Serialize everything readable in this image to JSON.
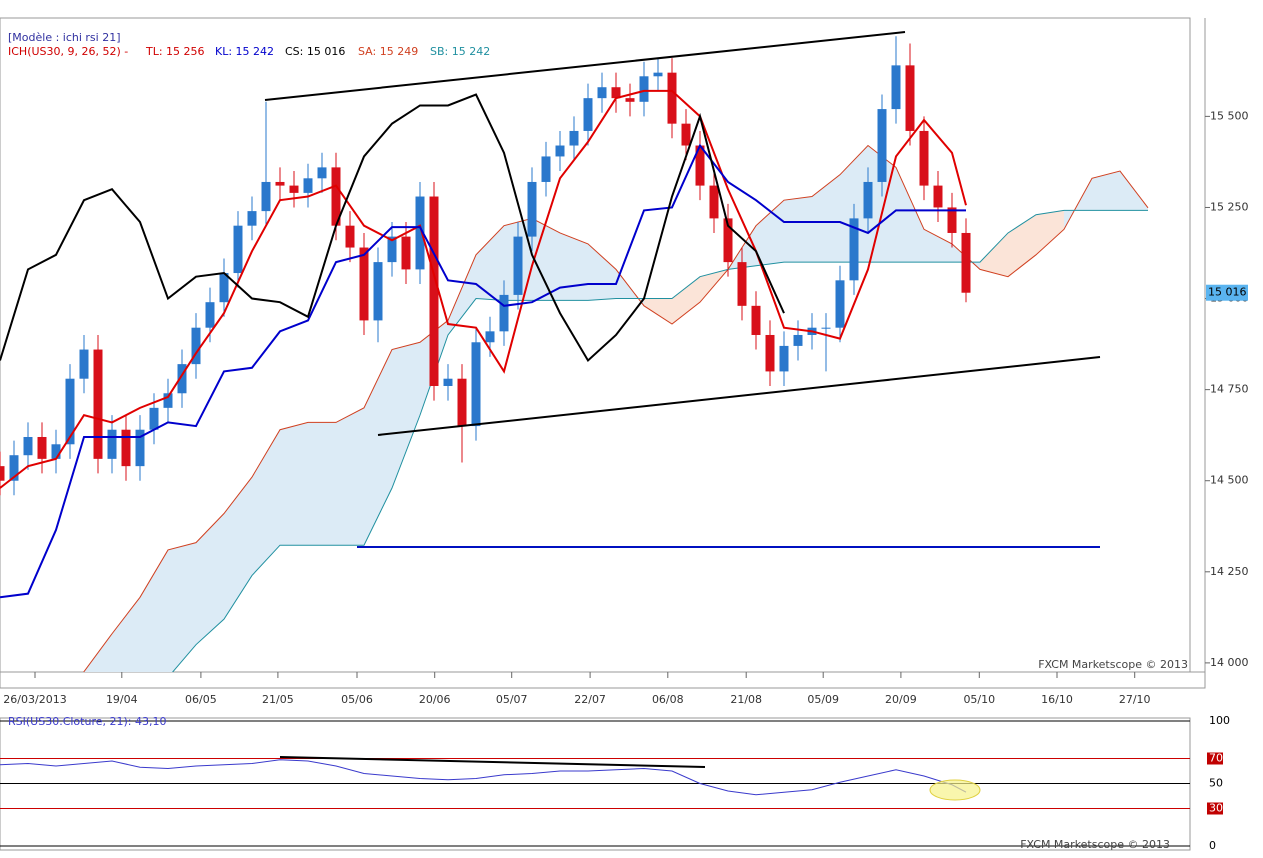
{
  "chart_data": {
    "type": "candlestick",
    "model_label": "[Modèle : ichi rsi 21]",
    "indicator_label": "ICH(US30, 9, 26, 52) -",
    "watermark": "FXCM Marketscope © 2013",
    "up_color": "#2a78cc",
    "down_color": "#d8101a",
    "xlim": [
      0,
      170
    ],
    "xticks": [
      {
        "value": 5,
        "label": "26/03/2013"
      },
      {
        "value": 17.4,
        "label": "19/04"
      },
      {
        "value": 28.7,
        "label": "06/05"
      },
      {
        "value": 39.7,
        "label": "21/05"
      },
      {
        "value": 51,
        "label": "05/06"
      },
      {
        "value": 62.1,
        "label": "20/06"
      },
      {
        "value": 73.1,
        "label": "05/07"
      },
      {
        "value": 84.3,
        "label": "22/07"
      },
      {
        "value": 95.4,
        "label": "06/08"
      },
      {
        "value": 106.6,
        "label": "21/08"
      },
      {
        "value": 117.6,
        "label": "05/09"
      },
      {
        "value": 128.7,
        "label": "20/09"
      },
      {
        "value": 139.9,
        "label": "05/10"
      },
      {
        "value": 151,
        "label": "16/10"
      },
      {
        "value": 162.1,
        "label": "27/10"
      }
    ],
    "ylim": [
      13975,
      15770
    ],
    "yticks": [
      {
        "value": 14000,
        "label": "14 000"
      },
      {
        "value": 14250,
        "label": "14 250"
      },
      {
        "value": 14500,
        "label": "14 500"
      },
      {
        "value": 14750,
        "label": "14 750"
      },
      {
        "value": 15000,
        "label": "15 000"
      },
      {
        "value": 15250,
        "label": "15 250"
      },
      {
        "value": 15500,
        "label": "15 500"
      }
    ],
    "last_price": {
      "value": 15016,
      "label": "15 016"
    },
    "x": [
      0,
      2,
      4,
      6,
      8,
      10,
      12,
      14,
      16,
      18,
      20,
      22,
      24,
      26,
      28,
      30,
      32,
      34,
      36,
      38,
      40,
      42,
      44,
      46,
      48,
      50,
      52,
      54,
      56,
      58,
      60,
      62,
      64,
      66,
      68,
      70,
      72,
      74,
      76,
      78,
      80,
      82,
      84,
      86,
      88,
      90,
      92,
      94,
      96,
      98,
      100,
      102,
      104,
      106,
      108,
      110,
      112,
      114,
      116,
      118,
      120,
      122,
      124,
      126,
      128,
      130,
      132,
      134,
      136,
      138
    ],
    "open": [
      14540,
      14500,
      14570,
      14620,
      14560,
      14600,
      14780,
      14860,
      14560,
      14640,
      14540,
      14640,
      14700,
      14740,
      14820,
      14920,
      14990,
      15070,
      15200,
      15240,
      15320,
      15310,
      15290,
      15330,
      15360,
      15200,
      15140,
      14940,
      15100,
      15170,
      15080,
      15280,
      14760,
      14780,
      14650,
      14880,
      14910,
      15010,
      15170,
      15320,
      15390,
      15420,
      15460,
      15550,
      15580,
      15550,
      15540,
      15610,
      15620,
      15480,
      15420,
      15310,
      15220,
      15100,
      14980,
      14900,
      14800,
      14870,
      14900,
      14920,
      14920,
      15050,
      15220,
      15320,
      15520,
      15640,
      15460,
      15310,
      15250,
      15180
    ],
    "high": [
      14580,
      14610,
      14660,
      14660,
      14640,
      14820,
      14900,
      14900,
      14680,
      14680,
      14680,
      14740,
      14780,
      14860,
      14960,
      15030,
      15110,
      15240,
      15280,
      15540,
      15360,
      15350,
      15370,
      15400,
      15400,
      15240,
      15180,
      15140,
      15210,
      15210,
      15320,
      15320,
      14820,
      14820,
      14920,
      14950,
      15050,
      15210,
      15360,
      15430,
      15460,
      15500,
      15590,
      15620,
      15620,
      15590,
      15650,
      15660,
      15660,
      15520,
      15460,
      15350,
      15260,
      15140,
      15020,
      14940,
      14910,
      14940,
      14960,
      14960,
      15090,
      15260,
      15360,
      15560,
      15720,
      15700,
      15500,
      15350,
      15290,
      15220
    ],
    "low": [
      14460,
      14460,
      14530,
      14520,
      14520,
      14560,
      14740,
      14520,
      14520,
      14500,
      14500,
      14600,
      14660,
      14700,
      14780,
      14880,
      14950,
      15030,
      15160,
      15200,
      15270,
      15250,
      15250,
      15290,
      15160,
      15100,
      14900,
      14880,
      15060,
      15040,
      15040,
      14720,
      14720,
      14550,
      14610,
      14840,
      14870,
      14970,
      15130,
      15280,
      15350,
      15380,
      15420,
      15510,
      15510,
      15500,
      15500,
      15570,
      15440,
      15380,
      15270,
      15180,
      15060,
      14940,
      14860,
      14760,
      14760,
      14830,
      14860,
      14800,
      14880,
      15010,
      15180,
      15280,
      15480,
      15420,
      15270,
      15210,
      15140,
      14990
    ],
    "close": [
      14500,
      14570,
      14620,
      14560,
      14600,
      14780,
      14860,
      14560,
      14640,
      14540,
      14640,
      14700,
      14740,
      14820,
      14920,
      14990,
      15070,
      15200,
      15240,
      15320,
      15310,
      15290,
      15330,
      15360,
      15200,
      15140,
      14940,
      15100,
      15170,
      15080,
      15280,
      14760,
      14780,
      14650,
      14880,
      14910,
      15010,
      15170,
      15320,
      15390,
      15420,
      15460,
      15550,
      15580,
      15550,
      15540,
      15610,
      15620,
      15480,
      15420,
      15310,
      15220,
      15100,
      14980,
      14900,
      14800,
      14870,
      14900,
      14920,
      14920,
      15050,
      15220,
      15320,
      15520,
      15640,
      15460,
      15310,
      15250,
      15180,
      15016
    ],
    "cloud": {
      "sa_color": "#d04020",
      "sb_color": "#2090a0",
      "bull_fill": "#dcebf6",
      "bear_fill": "#fbe4d8",
      "x": [
        11,
        16,
        20,
        24,
        28,
        32,
        36,
        40,
        44,
        48,
        52,
        56,
        60,
        64,
        68,
        72,
        76,
        80,
        84,
        88,
        92,
        96,
        100,
        104,
        108,
        112,
        116,
        120,
        124,
        128,
        132,
        136,
        140,
        144,
        148,
        152,
        156,
        160,
        164
      ],
      "sa": [
        13950,
        14080,
        14180,
        14310,
        14330,
        14410,
        14510,
        14640,
        14660,
        14660,
        14700,
        14860,
        14880,
        14940,
        15120,
        15200,
        15220,
        15180,
        15150,
        15080,
        14980,
        14930,
        14990,
        15080,
        15200,
        15270,
        15280,
        15340,
        15420,
        15360,
        15190,
        15150,
        15080,
        15060,
        15120,
        15190,
        15330,
        15350,
        15249
      ],
      "sb": [
        13850,
        13880,
        13920,
        13960,
        14050,
        14120,
        14240,
        14323,
        14323,
        14323,
        14323,
        14480,
        14680,
        14900,
        15000,
        14995,
        14995,
        14995,
        14995,
        15000,
        15000,
        15000,
        15060,
        15080,
        15090,
        15100,
        15100,
        15100,
        15100,
        15100,
        15100,
        15100,
        15100,
        15180,
        15230,
        15242,
        15242,
        15242,
        15242
      ]
    },
    "lines": [
      {
        "label": "TL: 15 256",
        "color": "#e00000",
        "x": [
          0,
          4,
          8,
          12,
          16,
          20,
          24,
          28,
          32,
          36,
          40,
          44,
          48,
          52,
          56,
          60,
          64,
          68,
          72,
          76,
          80,
          84,
          88,
          92,
          96,
          100,
          104,
          108,
          112,
          116,
          120,
          124,
          128,
          132,
          136,
          138
        ],
        "values": [
          14480,
          14540,
          14560,
          14680,
          14660,
          14700,
          14730,
          14850,
          14960,
          15130,
          15270,
          15280,
          15310,
          15200,
          15160,
          15200,
          14930,
          14920,
          14800,
          15090,
          15330,
          15430,
          15550,
          15570,
          15570,
          15500,
          15300,
          15130,
          14920,
          14910,
          14890,
          15080,
          15390,
          15490,
          15400,
          15256
        ]
      },
      {
        "label": "KL: 15 242",
        "color": "#0000cc",
        "x": [
          0,
          4,
          8,
          12,
          16,
          20,
          24,
          28,
          32,
          36,
          40,
          44,
          48,
          52,
          56,
          60,
          64,
          68,
          72,
          76,
          80,
          84,
          88,
          92,
          96,
          100,
          104,
          108,
          112,
          116,
          120,
          124,
          128,
          132,
          136,
          138
        ],
        "values": [
          14180,
          14190,
          14365,
          14620,
          14620,
          14620,
          14660,
          14650,
          14800,
          14810,
          14910,
          14940,
          15100,
          15120,
          15196,
          15196,
          15050,
          15040,
          14980,
          14990,
          15030,
          15040,
          15040,
          15242,
          15250,
          15420,
          15320,
          15270,
          15210,
          15210,
          15210,
          15180,
          15242,
          15242,
          15242,
          15242
        ]
      },
      {
        "label": "CS: 15 016",
        "color": "#000000",
        "x": [
          0,
          4,
          8,
          12,
          16,
          20,
          24,
          28,
          32,
          36,
          40,
          44,
          48,
          52,
          56,
          60,
          64,
          68,
          72,
          76,
          80,
          84,
          88,
          92,
          96,
          100,
          104,
          108,
          112
        ],
        "values": [
          14830,
          15080,
          15120,
          15270,
          15300,
          15210,
          15000,
          15060,
          15070,
          15000,
          14990,
          14950,
          15200,
          15390,
          15480,
          15530,
          15530,
          15560,
          15400,
          15120,
          14960,
          14830,
          14900,
          15000,
          15280,
          15500,
          15200,
          15130,
          14960
        ]
      }
    ],
    "sa_label": "SA: 15 249",
    "sb_label": "SB: 15 242",
    "rsi": {
      "label": "RSI(US30.Cloture, 21): 43,10",
      "color": "#3a3acc",
      "ylim": [
        0,
        100
      ],
      "yticks": [
        0,
        30,
        50,
        70,
        100
      ],
      "x": [
        0,
        4,
        8,
        12,
        16,
        20,
        24,
        28,
        32,
        36,
        40,
        44,
        48,
        52,
        56,
        60,
        64,
        68,
        72,
        76,
        80,
        84,
        88,
        92,
        96,
        100,
        104,
        108,
        112,
        116,
        120,
        124,
        128,
        132,
        136,
        138
      ],
      "values": [
        65,
        66,
        64,
        66,
        68,
        63,
        62,
        64,
        65,
        66,
        69,
        68,
        64,
        58,
        56,
        54,
        53,
        54,
        57,
        58,
        60,
        60,
        61,
        62,
        60,
        50,
        44,
        41,
        43,
        45,
        51,
        56,
        61,
        56,
        49,
        43.1
      ]
    }
  }
}
